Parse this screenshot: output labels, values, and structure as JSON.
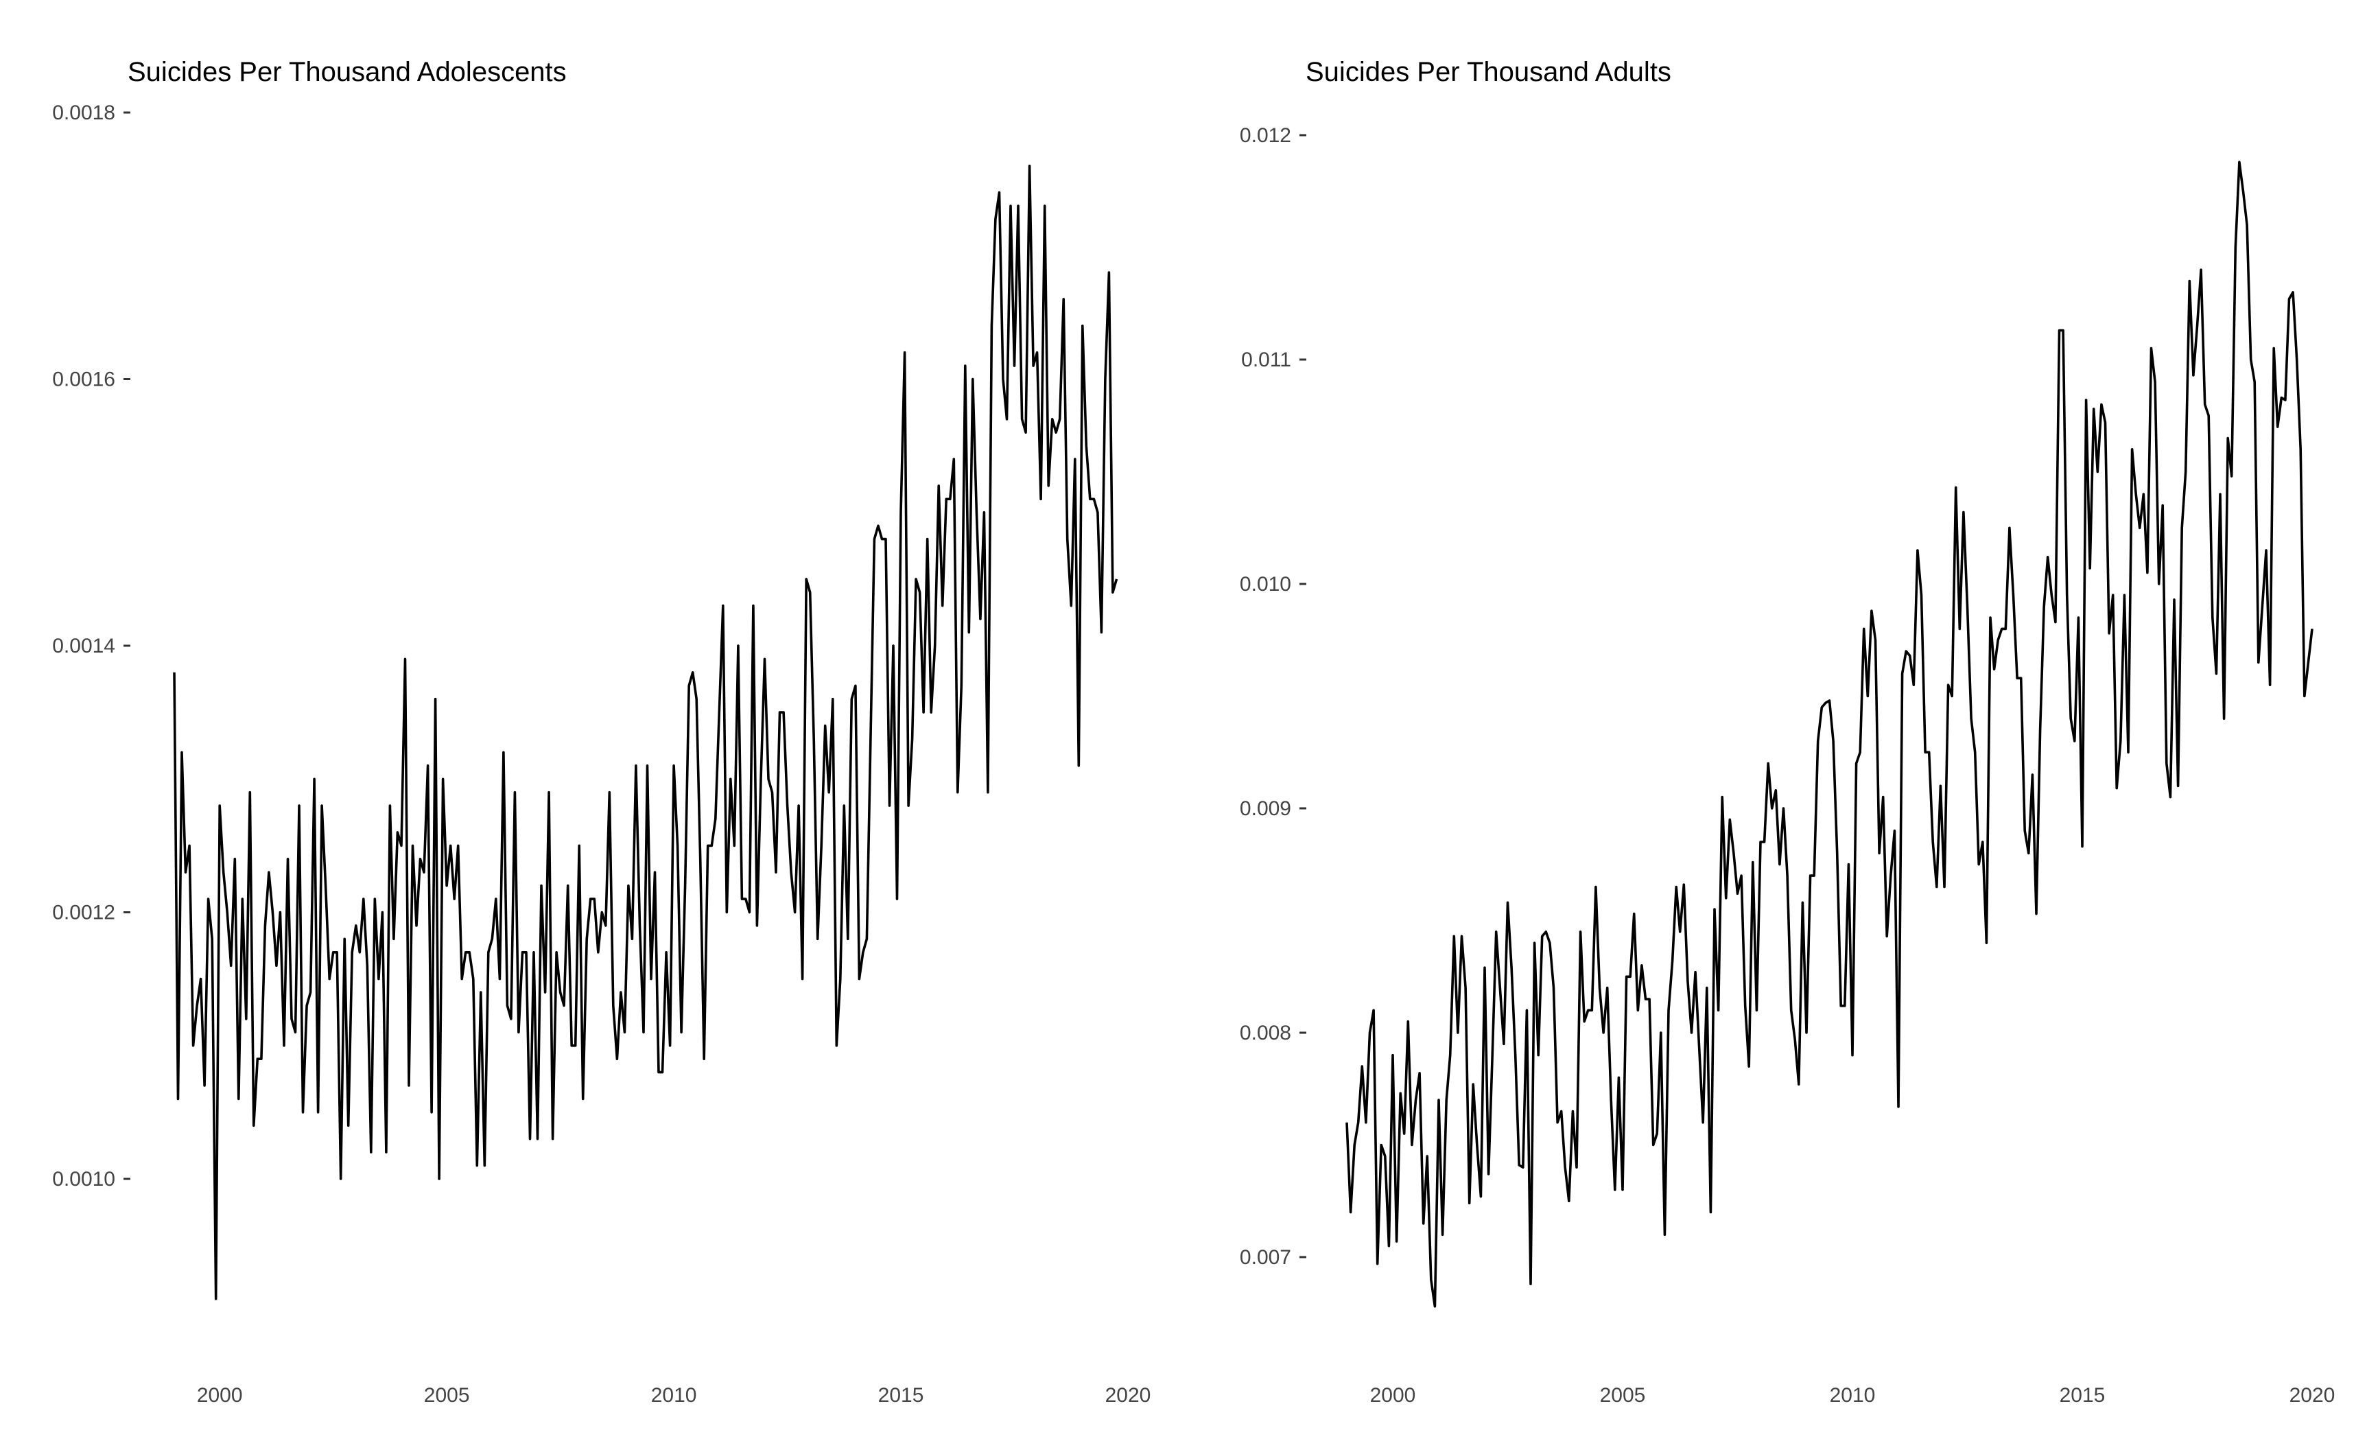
{
  "chart_data": [
    {
      "type": "line",
      "title": "Suicides Per Thousand Adolescents",
      "xlabel": "",
      "ylabel": "",
      "xlim": [
        1999.0,
        2020.0
      ],
      "ylim": [
        0.0009,
        0.0018
      ],
      "xticks": [
        "2000",
        "2005",
        "2010",
        "2015",
        "2020"
      ],
      "yticks": [
        "0.0010",
        "0.0012",
        "0.0014",
        "0.0016",
        "0.0018"
      ],
      "grid": false,
      "legend": "none",
      "color": "#000000",
      "x_start": 1999.0,
      "x_step": 0.0833333,
      "values": [
        0.00138,
        0.00106,
        0.00132,
        0.00123,
        0.00125,
        0.0011,
        0.00113,
        0.00115,
        0.00107,
        0.00121,
        0.00118,
        0.00091,
        0.00128,
        0.00123,
        0.0012,
        0.00116,
        0.00124,
        0.00106,
        0.00121,
        0.00112,
        0.00129,
        0.00104,
        0.00109,
        0.00109,
        0.00119,
        0.00123,
        0.0012,
        0.00116,
        0.0012,
        0.0011,
        0.00124,
        0.00112,
        0.00111,
        0.00128,
        0.00105,
        0.00113,
        0.00114,
        0.0013,
        0.00105,
        0.00128,
        0.00122,
        0.00115,
        0.00117,
        0.00117,
        0.001,
        0.00118,
        0.00104,
        0.00117,
        0.00119,
        0.00117,
        0.00121,
        0.00116,
        0.00102,
        0.00121,
        0.00115,
        0.0012,
        0.00102,
        0.00128,
        0.00118,
        0.00126,
        0.00125,
        0.00139,
        0.00107,
        0.00125,
        0.00119,
        0.00124,
        0.00123,
        0.00131,
        0.00105,
        0.00136,
        0.001,
        0.0013,
        0.00122,
        0.00125,
        0.00121,
        0.00125,
        0.00115,
        0.00117,
        0.00117,
        0.00115,
        0.00101,
        0.00114,
        0.00101,
        0.00117,
        0.00118,
        0.00121,
        0.00115,
        0.00132,
        0.00113,
        0.00112,
        0.00129,
        0.00111,
        0.00117,
        0.00117,
        0.00103,
        0.00117,
        0.00103,
        0.00122,
        0.00114,
        0.00129,
        0.00103,
        0.00117,
        0.00114,
        0.00113,
        0.00122,
        0.0011,
        0.0011,
        0.00125,
        0.00106,
        0.00118,
        0.00121,
        0.00121,
        0.00117,
        0.0012,
        0.00119,
        0.00129,
        0.00113,
        0.00109,
        0.00114,
        0.00111,
        0.00122,
        0.00118,
        0.00131,
        0.00119,
        0.00111,
        0.00131,
        0.00115,
        0.00123,
        0.00108,
        0.00108,
        0.00117,
        0.0011,
        0.00131,
        0.00125,
        0.00111,
        0.00122,
        0.00137,
        0.00138,
        0.00136,
        0.00124,
        0.00109,
        0.00125,
        0.00125,
        0.00127,
        0.00135,
        0.00143,
        0.0012,
        0.0013,
        0.00125,
        0.0014,
        0.00121,
        0.00121,
        0.0012,
        0.00143,
        0.00119,
        0.0013,
        0.00139,
        0.0013,
        0.00129,
        0.00123,
        0.00135,
        0.00135,
        0.00128,
        0.00123,
        0.0012,
        0.00128,
        0.00115,
        0.00145,
        0.00144,
        0.00133,
        0.00118,
        0.00125,
        0.00134,
        0.00129,
        0.00136,
        0.0011,
        0.00115,
        0.00128,
        0.00118,
        0.00136,
        0.00137,
        0.00115,
        0.00117,
        0.00118,
        0.00133,
        0.00148,
        0.00149,
        0.00148,
        0.00148,
        0.00128,
        0.0014,
        0.00121,
        0.0015,
        0.00162,
        0.00128,
        0.00133,
        0.00145,
        0.00144,
        0.00135,
        0.00148,
        0.00135,
        0.0014,
        0.00152,
        0.00143,
        0.00151,
        0.00151,
        0.00154,
        0.00129,
        0.00137,
        0.00161,
        0.00141,
        0.0016,
        0.0015,
        0.00142,
        0.0015,
        0.00129,
        0.00164,
        0.00172,
        0.00174,
        0.0016,
        0.00157,
        0.00173,
        0.00161,
        0.00173,
        0.00157,
        0.00156,
        0.00176,
        0.00161,
        0.00162,
        0.00151,
        0.00173,
        0.00152,
        0.00157,
        0.00156,
        0.00157,
        0.00166,
        0.00148,
        0.00143,
        0.00154,
        0.00131,
        0.00164,
        0.00155,
        0.00151,
        0.00151,
        0.0015,
        0.00141,
        0.0016,
        0.00168,
        0.00144,
        0.00145
      ]
    },
    {
      "type": "line",
      "title": "Suicides Per Thousand Adults",
      "xlabel": "",
      "ylabel": "",
      "xlim": [
        1999.0,
        2020.0
      ],
      "ylim": [
        0.0068,
        0.0119
      ],
      "xticks": [
        "2000",
        "2005",
        "2010",
        "2015",
        "2020"
      ],
      "yticks": [
        "0.007",
        "0.008",
        "0.009",
        "0.010",
        "0.011",
        "0.012"
      ],
      "grid": false,
      "legend": "none",
      "color": "#000000",
      "x_start": 1999.0,
      "x_step": 0.0833333,
      "values": [
        0.0076,
        0.0072,
        0.0075,
        0.0076,
        0.00785,
        0.0076,
        0.008,
        0.0081,
        0.00697,
        0.0075,
        0.00745,
        0.00705,
        0.0079,
        0.00707,
        0.00773,
        0.00755,
        0.00805,
        0.0075,
        0.0077,
        0.00782,
        0.00715,
        0.00745,
        0.0069,
        0.00678,
        0.0077,
        0.0071,
        0.0077,
        0.0079,
        0.00843,
        0.008,
        0.00843,
        0.0082,
        0.00724,
        0.00777,
        0.0075,
        0.00727,
        0.00829,
        0.00737,
        0.0079,
        0.00845,
        0.0082,
        0.00795,
        0.00858,
        0.00829,
        0.0079,
        0.00741,
        0.0074,
        0.0081,
        0.00688,
        0.0084,
        0.0079,
        0.00843,
        0.00845,
        0.0084,
        0.0082,
        0.0076,
        0.00765,
        0.0074,
        0.00725,
        0.00765,
        0.0074,
        0.00845,
        0.00805,
        0.0081,
        0.0081,
        0.00865,
        0.0082,
        0.008,
        0.0082,
        0.0077,
        0.0073,
        0.0078,
        0.0073,
        0.00825,
        0.00825,
        0.00853,
        0.0081,
        0.0083,
        0.00815,
        0.00815,
        0.0075,
        0.00755,
        0.008,
        0.0071,
        0.0081,
        0.00832,
        0.00865,
        0.00845,
        0.00866,
        0.00823,
        0.008,
        0.00827,
        0.00793,
        0.0076,
        0.0082,
        0.0072,
        0.00855,
        0.0081,
        0.00905,
        0.0086,
        0.00895,
        0.0088,
        0.00862,
        0.0087,
        0.00812,
        0.00785,
        0.00876,
        0.0081,
        0.00885,
        0.00885,
        0.0092,
        0.009,
        0.00908,
        0.00875,
        0.009,
        0.0087,
        0.0081,
        0.00797,
        0.00777,
        0.00858,
        0.008,
        0.0087,
        0.0087,
        0.0093,
        0.00945,
        0.00947,
        0.00948,
        0.0093,
        0.0088,
        0.00812,
        0.00812,
        0.00875,
        0.0079,
        0.0092,
        0.00925,
        0.0098,
        0.0095,
        0.00988,
        0.00975,
        0.0088,
        0.00905,
        0.00843,
        0.0087,
        0.0089,
        0.00767,
        0.0096,
        0.0097,
        0.00968,
        0.00955,
        0.01015,
        0.00995,
        0.00925,
        0.00925,
        0.00885,
        0.00865,
        0.0091,
        0.00865,
        0.00955,
        0.0095,
        0.01043,
        0.0098,
        0.01032,
        0.0099,
        0.0094,
        0.00925,
        0.00875,
        0.00885,
        0.0084,
        0.00985,
        0.00962,
        0.00975,
        0.0098,
        0.0098,
        0.01025,
        0.00995,
        0.00958,
        0.00958,
        0.0089,
        0.0088,
        0.00915,
        0.00853,
        0.00935,
        0.0099,
        0.01012,
        0.00995,
        0.00983,
        0.01113,
        0.01113,
        0.00995,
        0.0094,
        0.0093,
        0.00985,
        0.00883,
        0.01082,
        0.01007,
        0.01078,
        0.0105,
        0.0108,
        0.01072,
        0.00978,
        0.00995,
        0.00909,
        0.0093,
        0.00995,
        0.00925,
        0.0106,
        0.0104,
        0.01025,
        0.0104,
        0.01005,
        0.01105,
        0.0109,
        0.01,
        0.01035,
        0.0092,
        0.00905,
        0.00993,
        0.0091,
        0.01025,
        0.0105,
        0.01135,
        0.01093,
        0.01115,
        0.0114,
        0.0108,
        0.01075,
        0.00985,
        0.0096,
        0.0104,
        0.0094,
        0.01065,
        0.01048,
        0.0115,
        0.01188,
        0.01175,
        0.0116,
        0.011,
        0.0109,
        0.00965,
        0.0099,
        0.01015,
        0.00955,
        0.01105,
        0.0107,
        0.01083,
        0.01082,
        0.01127,
        0.0113,
        0.011,
        0.0106,
        0.0095,
        0.00965,
        0.0098
      ]
    }
  ]
}
